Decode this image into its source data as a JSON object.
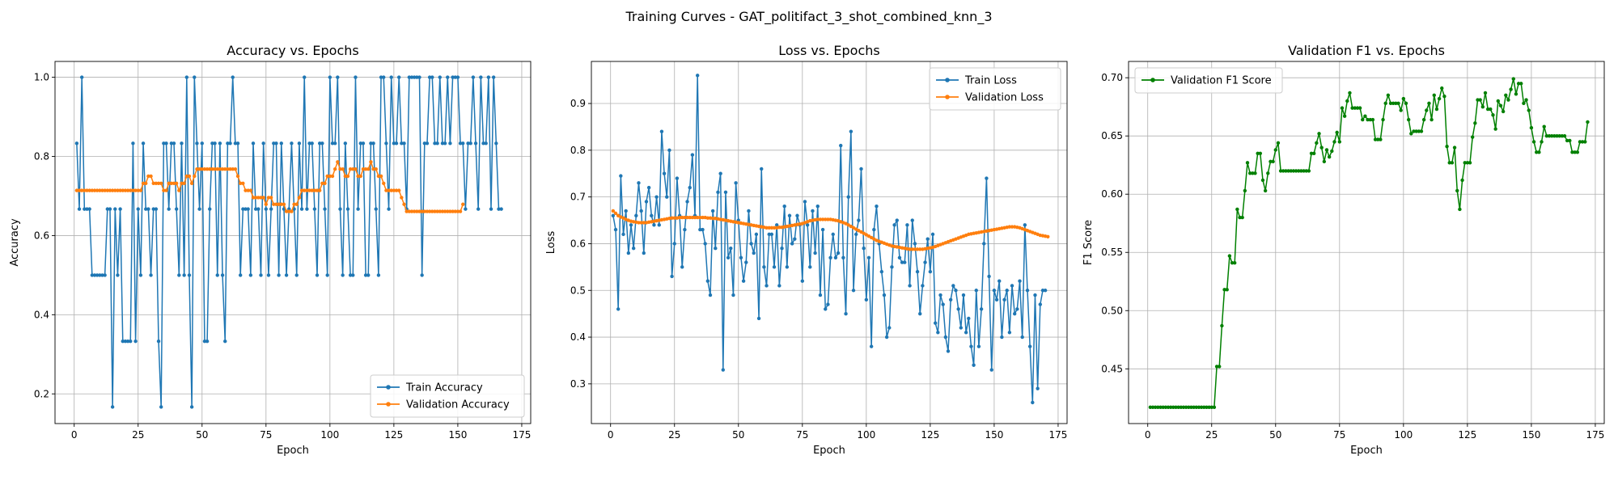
{
  "figure": {
    "suptitle": "Training Curves - GAT_politifact_3_shot_combined_knn_3"
  },
  "colors": {
    "train": "#1f77b4",
    "validation": "#ff7f0e",
    "f1": "#008000",
    "grid": "#b0b0b0"
  },
  "chart_data": [
    {
      "type": "line",
      "title": "Accuracy vs. Epochs",
      "xlabel": "Epoch",
      "ylabel": "Accuracy",
      "xlim": [
        -7.5,
        178.5
      ],
      "ylim": [
        0.125,
        1.04
      ],
      "xticks": [
        0,
        25,
        50,
        75,
        100,
        125,
        150,
        175
      ],
      "yticks": [
        0.2,
        0.4,
        0.6,
        0.8,
        1.0
      ],
      "ytick_labels": [
        "0.2",
        "0.4",
        "0.6",
        "0.8",
        "1.0"
      ],
      "grid": true,
      "legend": "lower right",
      "series": [
        {
          "name": "Train Accuracy",
          "color": "#1f77b4",
          "y": [
            0.833,
            0.667,
            1.0,
            0.667,
            0.667,
            0.667,
            0.5,
            0.5,
            0.5,
            0.5,
            0.5,
            0.5,
            0.667,
            0.667,
            0.167,
            0.667,
            0.5,
            0.667,
            0.333,
            0.333,
            0.333,
            0.333,
            0.833,
            0.333,
            0.667,
            0.5,
            0.833,
            0.667,
            0.667,
            0.5,
            0.667,
            0.667,
            0.333,
            0.167,
            0.833,
            0.833,
            0.667,
            0.833,
            0.833,
            0.667,
            0.5,
            0.833,
            0.5,
            1.0,
            0.5,
            0.167,
            1.0,
            0.833,
            0.667,
            0.833,
            0.333,
            0.333,
            0.667,
            0.833,
            0.833,
            0.5,
            0.833,
            0.5,
            0.333,
            0.833,
            0.833,
            1.0,
            0.833,
            0.833,
            0.5,
            0.667,
            0.667,
            0.667,
            0.5,
            0.833,
            0.667,
            0.667,
            0.5,
            0.833,
            0.667,
            0.5,
            0.667,
            0.833,
            0.833,
            0.5,
            0.833,
            0.667,
            0.5,
            0.667,
            0.833,
            0.667,
            0.5,
            0.833,
            0.667,
            1.0,
            0.667,
            0.833,
            0.833,
            0.667,
            0.5,
            0.833,
            0.833,
            0.667,
            0.5,
            1.0,
            0.833,
            0.833,
            1.0,
            0.667,
            0.5,
            0.833,
            0.667,
            0.5,
            0.5,
            1.0,
            0.667,
            0.833,
            0.833,
            0.5,
            0.5,
            0.833,
            0.833,
            0.667,
            0.5,
            1.0,
            1.0,
            0.833,
            0.667,
            1.0,
            0.833,
            0.833,
            1.0,
            0.833,
            0.833,
            0.667,
            1.0,
            1.0,
            1.0,
            1.0,
            1.0,
            0.5,
            0.833,
            0.833,
            1.0,
            1.0,
            0.833,
            0.833,
            1.0,
            0.833,
            0.833,
            1.0,
            0.833,
            1.0,
            1.0,
            1.0,
            0.833,
            0.833,
            0.667,
            0.833,
            0.833,
            1.0,
            0.833,
            0.667,
            1.0,
            0.833,
            0.833,
            1.0,
            0.667,
            1.0,
            0.833,
            0.667,
            0.667
          ]
        },
        {
          "name": "Validation Accuracy",
          "color": "#ff7f0e",
          "y": [
            0.714,
            0.714,
            0.714,
            0.714,
            0.714,
            0.714,
            0.714,
            0.714,
            0.714,
            0.714,
            0.714,
            0.714,
            0.714,
            0.714,
            0.714,
            0.714,
            0.714,
            0.714,
            0.714,
            0.714,
            0.714,
            0.714,
            0.714,
            0.714,
            0.714,
            0.714,
            0.732,
            0.732,
            0.75,
            0.75,
            0.732,
            0.732,
            0.732,
            0.732,
            0.714,
            0.714,
            0.732,
            0.732,
            0.732,
            0.732,
            0.714,
            0.732,
            0.732,
            0.75,
            0.75,
            0.732,
            0.75,
            0.768,
            0.768,
            0.768,
            0.768,
            0.768,
            0.768,
            0.768,
            0.768,
            0.768,
            0.768,
            0.768,
            0.768,
            0.768,
            0.768,
            0.768,
            0.768,
            0.75,
            0.732,
            0.732,
            0.714,
            0.714,
            0.714,
            0.696,
            0.696,
            0.696,
            0.696,
            0.696,
            0.679,
            0.696,
            0.696,
            0.679,
            0.679,
            0.679,
            0.679,
            0.679,
            0.661,
            0.661,
            0.661,
            0.679,
            0.679,
            0.696,
            0.714,
            0.714,
            0.714,
            0.714,
            0.714,
            0.714,
            0.714,
            0.714,
            0.732,
            0.732,
            0.75,
            0.75,
            0.75,
            0.768,
            0.786,
            0.768,
            0.768,
            0.75,
            0.75,
            0.768,
            0.768,
            0.768,
            0.75,
            0.75,
            0.768,
            0.768,
            0.768,
            0.786,
            0.768,
            0.768,
            0.75,
            0.75,
            0.732,
            0.714,
            0.714,
            0.714,
            0.714,
            0.714,
            0.714,
            0.696,
            0.679,
            0.661,
            0.661,
            0.661,
            0.661,
            0.661,
            0.661,
            0.661,
            0.661,
            0.661,
            0.661,
            0.661,
            0.661,
            0.661,
            0.661,
            0.661,
            0.661,
            0.661,
            0.661,
            0.661,
            0.661,
            0.661,
            0.661,
            0.679
          ]
        }
      ]
    },
    {
      "type": "line",
      "title": "Loss vs. Epochs",
      "xlabel": "Epoch",
      "ylabel": "Loss",
      "xlim": [
        -7.5,
        178.5
      ],
      "ylim": [
        0.215,
        0.99
      ],
      "xticks": [
        0,
        25,
        50,
        75,
        100,
        125,
        150,
        175
      ],
      "yticks": [
        0.3,
        0.4,
        0.5,
        0.6,
        0.7,
        0.8,
        0.9
      ],
      "ytick_labels": [
        "0.3",
        "0.4",
        "0.5",
        "0.6",
        "0.7",
        "0.8",
        "0.9"
      ],
      "grid": true,
      "legend": "upper right",
      "series": [
        {
          "name": "Train Loss",
          "color": "#1f77b4",
          "y": [
            0.66,
            0.63,
            0.46,
            0.745,
            0.62,
            0.67,
            0.58,
            0.64,
            0.59,
            0.66,
            0.73,
            0.67,
            0.58,
            0.69,
            0.72,
            0.66,
            0.64,
            0.7,
            0.64,
            0.84,
            0.75,
            0.7,
            0.8,
            0.53,
            0.6,
            0.74,
            0.66,
            0.55,
            0.63,
            0.69,
            0.72,
            0.79,
            0.66,
            0.96,
            0.63,
            0.63,
            0.6,
            0.52,
            0.49,
            0.67,
            0.59,
            0.71,
            0.75,
            0.33,
            0.71,
            0.57,
            0.59,
            0.49,
            0.73,
            0.65,
            0.57,
            0.52,
            0.56,
            0.67,
            0.6,
            0.58,
            0.62,
            0.44,
            0.76,
            0.55,
            0.51,
            0.62,
            0.62,
            0.55,
            0.64,
            0.51,
            0.59,
            0.68,
            0.55,
            0.66,
            0.6,
            0.61,
            0.66,
            0.64,
            0.52,
            0.69,
            0.64,
            0.55,
            0.67,
            0.58,
            0.68,
            0.49,
            0.63,
            0.46,
            0.47,
            0.57,
            0.62,
            0.57,
            0.58,
            0.81,
            0.57,
            0.45,
            0.7,
            0.84,
            0.5,
            0.62,
            0.65,
            0.76,
            0.59,
            0.48,
            0.57,
            0.38,
            0.63,
            0.68,
            0.6,
            0.54,
            0.49,
            0.4,
            0.42,
            0.55,
            0.64,
            0.65,
            0.57,
            0.56,
            0.56,
            0.64,
            0.51,
            0.65,
            0.6,
            0.54,
            0.45,
            0.51,
            0.56,
            0.61,
            0.54,
            0.62,
            0.43,
            0.41,
            0.49,
            0.47,
            0.4,
            0.37,
            0.48,
            0.51,
            0.5,
            0.46,
            0.42,
            0.49,
            0.41,
            0.44,
            0.38,
            0.34,
            0.5,
            0.38,
            0.46,
            0.6,
            0.74,
            0.53,
            0.33,
            0.5,
            0.48,
            0.52,
            0.4,
            0.48,
            0.5,
            0.41,
            0.51,
            0.45,
            0.46,
            0.52,
            0.4,
            0.64,
            0.5,
            0.38,
            0.26,
            0.49,
            0.29,
            0.47,
            0.5,
            0.5
          ]
        },
        {
          "name": "Validation Loss",
          "color": "#ff7f0e",
          "y": [
            0.67,
            0.665,
            0.66,
            0.657,
            0.655,
            0.652,
            0.65,
            0.648,
            0.647,
            0.646,
            0.645,
            0.645,
            0.645,
            0.645,
            0.646,
            0.647,
            0.648,
            0.649,
            0.65,
            0.651,
            0.652,
            0.653,
            0.654,
            0.655,
            0.655,
            0.655,
            0.656,
            0.656,
            0.656,
            0.656,
            0.656,
            0.656,
            0.656,
            0.656,
            0.656,
            0.656,
            0.656,
            0.655,
            0.655,
            0.654,
            0.654,
            0.653,
            0.652,
            0.651,
            0.65,
            0.649,
            0.648,
            0.647,
            0.646,
            0.645,
            0.644,
            0.643,
            0.642,
            0.641,
            0.64,
            0.639,
            0.638,
            0.637,
            0.636,
            0.635,
            0.634,
            0.634,
            0.634,
            0.634,
            0.634,
            0.635,
            0.635,
            0.636,
            0.637,
            0.638,
            0.639,
            0.64,
            0.641,
            0.642,
            0.643,
            0.645,
            0.647,
            0.649,
            0.65,
            0.651,
            0.652,
            0.652,
            0.652,
            0.652,
            0.652,
            0.652,
            0.651,
            0.65,
            0.649,
            0.647,
            0.645,
            0.643,
            0.64,
            0.637,
            0.634,
            0.631,
            0.628,
            0.625,
            0.622,
            0.619,
            0.616,
            0.613,
            0.61,
            0.607,
            0.605,
            0.603,
            0.601,
            0.599,
            0.597,
            0.595,
            0.594,
            0.593,
            0.592,
            0.591,
            0.59,
            0.589,
            0.588,
            0.588,
            0.588,
            0.588,
            0.588,
            0.588,
            0.589,
            0.59,
            0.591,
            0.592,
            0.594,
            0.596,
            0.598,
            0.6,
            0.602,
            0.604,
            0.606,
            0.608,
            0.61,
            0.612,
            0.614,
            0.616,
            0.618,
            0.62,
            0.621,
            0.622,
            0.623,
            0.624,
            0.625,
            0.626,
            0.627,
            0.628,
            0.629,
            0.63,
            0.631,
            0.632,
            0.633,
            0.634,
            0.635,
            0.636,
            0.636,
            0.636,
            0.635,
            0.634,
            0.632,
            0.63,
            0.628,
            0.626,
            0.624,
            0.622,
            0.62,
            0.618,
            0.617,
            0.616,
            0.615
          ]
        }
      ]
    },
    {
      "type": "line",
      "title": "Validation F1 vs. Epochs",
      "xlabel": "Epoch",
      "ylabel": "F1 Score",
      "xlim": [
        -7.5,
        178.5
      ],
      "ylim": [
        0.403,
        0.714
      ],
      "xticks": [
        0,
        25,
        50,
        75,
        100,
        125,
        150,
        175
      ],
      "yticks": [
        0.45,
        0.5,
        0.55,
        0.6,
        0.65,
        0.7
      ],
      "ytick_labels": [
        "0.45",
        "0.50",
        "0.55",
        "0.60",
        "0.65",
        "0.70"
      ],
      "grid": true,
      "legend": "upper left",
      "series": [
        {
          "name": "Validation F1 Score",
          "color": "#008000",
          "y": [
            0.417,
            0.417,
            0.417,
            0.417,
            0.417,
            0.417,
            0.417,
            0.417,
            0.417,
            0.417,
            0.417,
            0.417,
            0.417,
            0.417,
            0.417,
            0.417,
            0.417,
            0.417,
            0.417,
            0.417,
            0.417,
            0.417,
            0.417,
            0.417,
            0.417,
            0.417,
            0.452,
            0.452,
            0.487,
            0.518,
            0.518,
            0.547,
            0.541,
            0.541,
            0.587,
            0.58,
            0.58,
            0.603,
            0.627,
            0.618,
            0.618,
            0.618,
            0.635,
            0.635,
            0.612,
            0.603,
            0.618,
            0.628,
            0.628,
            0.638,
            0.644,
            0.62,
            0.62,
            0.62,
            0.62,
            0.62,
            0.62,
            0.62,
            0.62,
            0.62,
            0.62,
            0.62,
            0.62,
            0.635,
            0.635,
            0.644,
            0.652,
            0.64,
            0.628,
            0.638,
            0.632,
            0.637,
            0.645,
            0.653,
            0.645,
            0.674,
            0.667,
            0.68,
            0.687,
            0.674,
            0.674,
            0.674,
            0.674,
            0.664,
            0.667,
            0.664,
            0.664,
            0.664,
            0.647,
            0.647,
            0.647,
            0.664,
            0.678,
            0.685,
            0.678,
            0.678,
            0.678,
            0.678,
            0.672,
            0.682,
            0.678,
            0.664,
            0.652,
            0.654,
            0.654,
            0.654,
            0.654,
            0.664,
            0.672,
            0.678,
            0.664,
            0.685,
            0.673,
            0.682,
            0.691,
            0.684,
            0.641,
            0.627,
            0.627,
            0.64,
            0.603,
            0.587,
            0.612,
            0.627,
            0.627,
            0.627,
            0.649,
            0.661,
            0.681,
            0.681,
            0.675,
            0.687,
            0.673,
            0.673,
            0.668,
            0.656,
            0.68,
            0.676,
            0.671,
            0.685,
            0.681,
            0.69,
            0.699,
            0.686,
            0.695,
            0.695,
            0.678,
            0.681,
            0.672,
            0.657,
            0.645,
            0.636,
            0.636,
            0.645,
            0.658,
            0.65,
            0.65,
            0.65,
            0.65,
            0.65,
            0.65,
            0.65,
            0.65,
            0.646,
            0.646,
            0.636,
            0.636,
            0.636,
            0.645,
            0.645,
            0.645,
            0.662
          ]
        }
      ]
    }
  ]
}
